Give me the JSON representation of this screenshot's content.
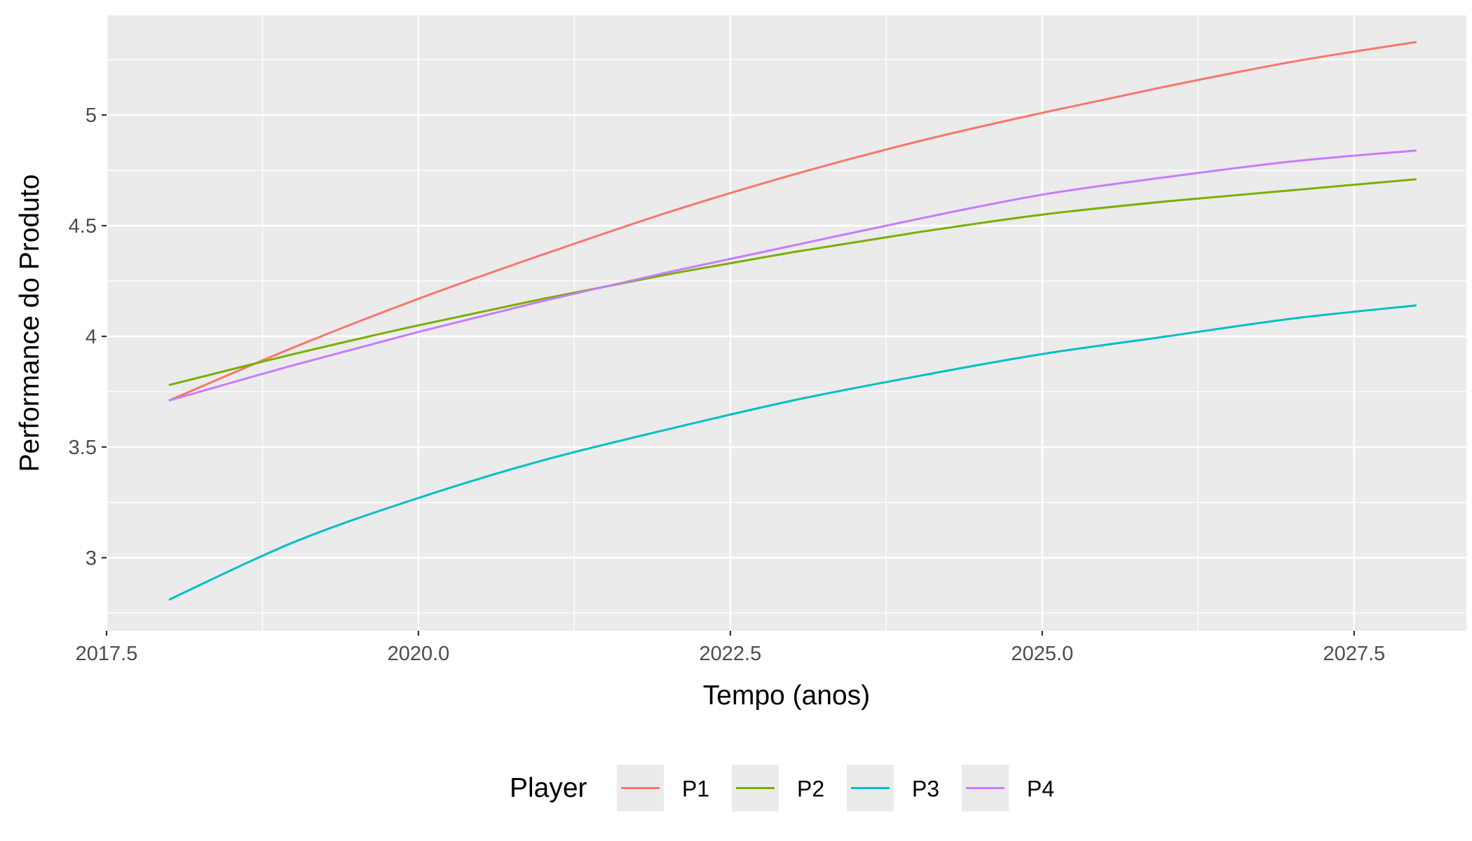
{
  "chart_data": {
    "type": "line",
    "title": "",
    "xlabel": "Tempo (anos)",
    "ylabel": "Performance do Produto",
    "xlim": [
      2017.5,
      2028.4
    ],
    "ylim": [
      2.67,
      5.45
    ],
    "x_ticks": [
      2017.5,
      2020.0,
      2022.5,
      2025.0,
      2027.5
    ],
    "x_tick_labels": [
      "2017.5",
      "2020.0",
      "2022.5",
      "2025.0",
      "2027.5"
    ],
    "y_ticks": [
      3,
      3.5,
      4,
      4.5,
      5
    ],
    "y_tick_labels": [
      "3",
      "3.5",
      "4",
      "4.5",
      "5"
    ],
    "grid": true,
    "legend": {
      "title": "Player",
      "position": "bottom"
    },
    "x": [
      2018,
      2019,
      2020,
      2021,
      2022,
      2023,
      2024,
      2025,
      2026,
      2027,
      2028
    ],
    "series": [
      {
        "name": "P1",
        "color": "#F8766D",
        "values": [
          3.71,
          3.95,
          4.17,
          4.37,
          4.56,
          4.73,
          4.88,
          5.01,
          5.13,
          5.24,
          5.33
        ]
      },
      {
        "name": "P2",
        "color": "#7CAE00",
        "values": [
          3.78,
          3.92,
          4.05,
          4.17,
          4.28,
          4.38,
          4.47,
          4.55,
          4.61,
          4.66,
          4.71
        ]
      },
      {
        "name": "P3",
        "color": "#00BFC4",
        "values": [
          2.81,
          3.07,
          3.27,
          3.44,
          3.58,
          3.71,
          3.82,
          3.92,
          4.0,
          4.08,
          4.14
        ]
      },
      {
        "name": "P4",
        "color": "#C77CFF",
        "values": [
          3.71,
          3.87,
          4.02,
          4.16,
          4.29,
          4.41,
          4.53,
          4.64,
          4.72,
          4.79,
          4.84
        ]
      }
    ]
  }
}
